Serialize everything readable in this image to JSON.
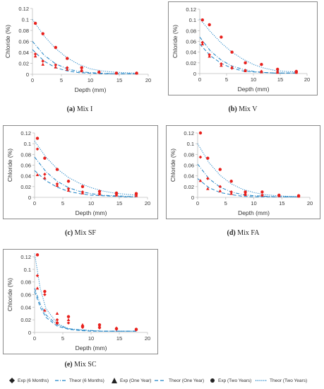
{
  "colors": {
    "exp": "#e8201c",
    "theor": "#1f84c6",
    "axis": "#bfbfbf"
  },
  "legend": [
    {
      "label": "Exp (6 Months)",
      "marker": "diamond",
      "line": ""
    },
    {
      "label": "Theor (6 Months)",
      "marker": "",
      "line": "dashdot"
    },
    {
      "label": "Exp (One Year)",
      "marker": "triangle",
      "line": ""
    },
    {
      "label": "Theor (One Year)",
      "marker": "",
      "line": "dash"
    },
    {
      "label": "Exp (Two Years)",
      "marker": "circle",
      "line": ""
    },
    {
      "label": "Theor (Two Years)",
      "marker": "",
      "line": "dot"
    }
  ],
  "chart_data": [
    {
      "type": "scatter",
      "caption_letter": "(a)",
      "caption_text": " Mix I",
      "xlabel": "Depth (mm)",
      "ylabel": "Chloride (%)",
      "xlim": [
        0,
        20
      ],
      "ylim": [
        0,
        0.12
      ],
      "xticks": [
        0,
        5,
        10,
        15,
        20
      ],
      "yticks": [
        0,
        0.02,
        0.04,
        0.06,
        0.08,
        0.1,
        0.12
      ],
      "series": [
        {
          "name": "Exp (6 Months)",
          "x": [
            0.5,
            1.8,
            4.0,
            6.0,
            8.5,
            11.5
          ],
          "y": [
            0.037,
            0.024,
            0.017,
            0.012,
            0.007,
            0.004
          ]
        },
        {
          "name": "Exp (One Year)",
          "x": [
            0.5,
            1.8,
            4.0,
            6.0,
            8.5,
            11.5,
            14.5,
            18.0
          ],
          "y": [
            0.033,
            0.018,
            0.013,
            0.009,
            0.006,
            0.004,
            0.002,
            0.002
          ]
        },
        {
          "name": "Exp (Two Years)",
          "x": [
            0.5,
            1.8,
            4.0,
            6.0,
            8.5,
            11.5,
            14.5,
            18.0
          ],
          "y": [
            0.093,
            0.074,
            0.049,
            0.029,
            0.012,
            0.004,
            0.002,
            0.002
          ]
        },
        {
          "name": "Theor (6 Months)",
          "x": [
            0,
            2,
            4,
            6,
            8,
            10,
            12,
            14,
            16,
            18
          ],
          "y": [
            0.06,
            0.035,
            0.019,
            0.01,
            0.005,
            0.003,
            0.002,
            0.001,
            0.001,
            0.001
          ]
        },
        {
          "name": "Theor (One Year)",
          "x": [
            0,
            2,
            4,
            6,
            8,
            10,
            12,
            14,
            16,
            18
          ],
          "y": [
            0.045,
            0.024,
            0.012,
            0.006,
            0.003,
            0.002,
            0.001,
            0.001,
            0.001,
            0.001
          ]
        },
        {
          "name": "Theor (Two Years)",
          "x": [
            0,
            2,
            4,
            6,
            8,
            10,
            12,
            14,
            16,
            18
          ],
          "y": [
            0.1,
            0.07,
            0.047,
            0.03,
            0.018,
            0.01,
            0.006,
            0.004,
            0.003,
            0.002
          ]
        }
      ]
    },
    {
      "type": "scatter",
      "caption_letter": "(b)",
      "caption_text": " Mix V",
      "xlabel": "Depth (mm)",
      "ylabel": "Chloride (%)",
      "xlim": [
        0,
        20
      ],
      "ylim": [
        0,
        0.12
      ],
      "xticks": [
        0,
        5,
        10,
        15,
        20
      ],
      "yticks": [
        0,
        0.02,
        0.04,
        0.06,
        0.08,
        0.1,
        0.12
      ],
      "series": [
        {
          "name": "Exp (6 Months)",
          "x": [
            0.5,
            1.8,
            4.0,
            6.0,
            8.5,
            11.5,
            14.5,
            18.0
          ],
          "y": [
            0.058,
            0.035,
            0.018,
            0.01,
            0.006,
            0.004,
            0.003,
            0.002
          ]
        },
        {
          "name": "Exp (One Year)",
          "x": [
            0.5,
            1.8,
            4.0,
            6.0,
            8.5,
            11.5,
            14.5,
            18.0
          ],
          "y": [
            0.055,
            0.032,
            0.015,
            0.012,
            0.005,
            0.003,
            0.002,
            0.002
          ]
        },
        {
          "name": "Exp (Two Years)",
          "x": [
            0.5,
            1.8,
            4.0,
            6.0,
            8.5,
            11.5,
            14.5,
            18.0
          ],
          "y": [
            0.1,
            0.091,
            0.068,
            0.04,
            0.02,
            0.017,
            0.008,
            0.004
          ]
        },
        {
          "name": "Theor (6 Months)",
          "x": [
            0,
            2,
            4,
            6,
            8,
            10,
            12,
            14,
            16,
            18
          ],
          "y": [
            0.068,
            0.042,
            0.025,
            0.014,
            0.008,
            0.004,
            0.002,
            0.001,
            0.001,
            0.001
          ]
        },
        {
          "name": "Theor (One Year)",
          "x": [
            0,
            2,
            4,
            6,
            8,
            10,
            12,
            14,
            16,
            18
          ],
          "y": [
            0.055,
            0.033,
            0.019,
            0.01,
            0.005,
            0.003,
            0.002,
            0.001,
            0.001,
            0.001
          ]
        },
        {
          "name": "Theor (Two Years)",
          "x": [
            0,
            2,
            4,
            6,
            8,
            10,
            12,
            14,
            16,
            18
          ],
          "y": [
            0.102,
            0.078,
            0.057,
            0.04,
            0.027,
            0.017,
            0.01,
            0.006,
            0.004,
            0.003
          ]
        }
      ]
    },
    {
      "type": "scatter",
      "caption_letter": "(c)",
      "caption_text": " Mix SF",
      "xlabel": "Depth (mm)",
      "ylabel": "Chloride (%)",
      "xlim": [
        0,
        20
      ],
      "ylim": [
        0,
        0.12
      ],
      "xticks": [
        0,
        5,
        10,
        15,
        20
      ],
      "yticks": [
        0,
        0.02,
        0.04,
        0.06,
        0.08,
        0.1,
        0.12
      ],
      "series": [
        {
          "name": "Exp (6 Months)",
          "x": [
            0.5,
            1.8,
            4.0,
            6.0,
            8.5,
            11.5,
            14.5,
            18.0
          ],
          "y": [
            0.09,
            0.043,
            0.025,
            0.016,
            0.01,
            0.007,
            0.005,
            0.004
          ]
        },
        {
          "name": "Exp (One Year)",
          "x": [
            0.5,
            1.8,
            4.0,
            6.0,
            8.5,
            11.5,
            14.5,
            18.0
          ],
          "y": [
            0.042,
            0.036,
            0.022,
            0.013,
            0.008,
            0.006,
            0.004,
            0.003
          ]
        },
        {
          "name": "Exp (Two Years)",
          "x": [
            0.5,
            1.8,
            4.0,
            6.0,
            8.5,
            11.5,
            14.5,
            18.0
          ],
          "y": [
            0.11,
            0.073,
            0.052,
            0.03,
            0.02,
            0.011,
            0.008,
            0.007
          ]
        },
        {
          "name": "Theor (6 Months)",
          "x": [
            0,
            2,
            4,
            6,
            8,
            10,
            12,
            14,
            16,
            18
          ],
          "y": [
            0.075,
            0.048,
            0.03,
            0.018,
            0.011,
            0.007,
            0.004,
            0.003,
            0.002,
            0.001
          ]
        },
        {
          "name": "Theor (One Year)",
          "x": [
            0,
            2,
            4,
            6,
            8,
            10,
            12,
            14,
            16,
            18
          ],
          "y": [
            0.05,
            0.031,
            0.019,
            0.011,
            0.007,
            0.004,
            0.003,
            0.002,
            0.001,
            0.001
          ]
        },
        {
          "name": "Theor (Two Years)",
          "x": [
            0,
            2,
            4,
            6,
            8,
            10,
            12,
            14,
            16,
            18
          ],
          "y": [
            0.105,
            0.075,
            0.053,
            0.037,
            0.026,
            0.018,
            0.012,
            0.008,
            0.006,
            0.004
          ]
        }
      ]
    },
    {
      "type": "scatter",
      "caption_letter": "(d)",
      "caption_text": " Mix FA",
      "xlabel": "Depth (mm)",
      "ylabel": "Chloride (%)",
      "xlim": [
        0,
        20
      ],
      "ylim": [
        0,
        0.12
      ],
      "xticks": [
        0,
        5,
        10,
        15,
        20
      ],
      "yticks": [
        0,
        0.02,
        0.04,
        0.06,
        0.08,
        0.1,
        0.12
      ],
      "series": [
        {
          "name": "Exp (6 Months)",
          "x": [
            0.5,
            1.8,
            4.0,
            6.0,
            8.5,
            11.5,
            14.5,
            18.0
          ],
          "y": [
            0.075,
            0.035,
            0.02,
            0.01,
            0.006,
            0.004,
            0.003,
            0.002
          ]
        },
        {
          "name": "Exp (One Year)",
          "x": [
            0.5,
            1.8,
            4.0,
            6.0,
            8.5,
            11.5,
            14.5,
            18.0
          ],
          "y": [
            0.031,
            0.016,
            0.012,
            0.007,
            0.005,
            0.004,
            0.003,
            0.002
          ]
        },
        {
          "name": "Exp (Two Years)",
          "x": [
            0.5,
            1.8,
            4.0,
            6.0,
            8.5,
            11.5,
            14.5,
            18.0
          ],
          "y": [
            0.12,
            0.073,
            0.052,
            0.03,
            0.01,
            0.01,
            0.004,
            0.003
          ]
        },
        {
          "name": "Theor (6 Months)",
          "x": [
            0,
            2,
            4,
            6,
            8,
            10,
            12,
            14,
            16,
            18
          ],
          "y": [
            0.062,
            0.035,
            0.019,
            0.01,
            0.005,
            0.003,
            0.002,
            0.001,
            0.001,
            0.001
          ]
        },
        {
          "name": "Theor (One Year)",
          "x": [
            0,
            2,
            4,
            6,
            8,
            10,
            12,
            14,
            16,
            18
          ],
          "y": [
            0.035,
            0.018,
            0.009,
            0.005,
            0.002,
            0.001,
            0.001,
            0.001,
            0.001,
            0.001
          ]
        },
        {
          "name": "Theor (Two Years)",
          "x": [
            0,
            2,
            4,
            6,
            8,
            10,
            12,
            14,
            16,
            18
          ],
          "y": [
            0.1,
            0.065,
            0.041,
            0.025,
            0.015,
            0.009,
            0.005,
            0.003,
            0.002,
            0.001
          ]
        }
      ]
    },
    {
      "type": "scatter",
      "caption_letter": "(e)",
      "caption_text": " Mix SC",
      "xlabel": "Depth (mm)",
      "ylabel": "Chloride (%)",
      "xlim": [
        0,
        20
      ],
      "ylim": [
        0,
        0.12
      ],
      "xticks": [
        0,
        5,
        10,
        15,
        20
      ],
      "yticks": [
        0,
        0.02,
        0.04,
        0.06,
        0.08,
        0.1,
        0.12
      ],
      "series": [
        {
          "name": "Exp (6 Months)",
          "x": [
            0.5,
            1.8,
            4.0,
            6.0,
            8.5,
            11.5,
            14.5,
            18.0
          ],
          "y": [
            0.09,
            0.06,
            0.02,
            0.015,
            0.008,
            0.007,
            0.005,
            0.004
          ]
        },
        {
          "name": "Exp (One Year)",
          "x": [
            0.5,
            1.8,
            4.0,
            6.0,
            8.5,
            11.5,
            14.5,
            18.0
          ],
          "y": [
            0.07,
            0.035,
            0.03,
            0.02,
            0.012,
            0.01,
            0.007,
            0.005
          ]
        },
        {
          "name": "Exp (Two Years)",
          "x": [
            0.5,
            1.8,
            4.0,
            6.0,
            8.5,
            11.5,
            14.5,
            18.0
          ],
          "y": [
            0.123,
            0.065,
            0.015,
            0.025,
            0.01,
            0.012,
            0.006,
            0.005
          ]
        },
        {
          "name": "Theor (6 Months)",
          "x": [
            0,
            1,
            2,
            4,
            6,
            8,
            10,
            12,
            14,
            16,
            18
          ],
          "y": [
            0.07,
            0.045,
            0.028,
            0.012,
            0.006,
            0.004,
            0.003,
            0.002,
            0.002,
            0.002,
            0.002
          ]
        },
        {
          "name": "Theor (One Year)",
          "x": [
            0,
            1,
            2,
            4,
            6,
            8,
            10,
            12,
            14,
            16,
            18
          ],
          "y": [
            0.065,
            0.04,
            0.024,
            0.01,
            0.005,
            0.003,
            0.002,
            0.002,
            0.002,
            0.002,
            0.002
          ]
        },
        {
          "name": "Theor (Two Years)",
          "x": [
            0,
            1,
            2,
            4,
            6,
            8,
            10,
            12,
            14,
            16,
            18
          ],
          "y": [
            0.125,
            0.07,
            0.038,
            0.014,
            0.006,
            0.004,
            0.003,
            0.002,
            0.002,
            0.002,
            0.002
          ]
        }
      ]
    }
  ]
}
